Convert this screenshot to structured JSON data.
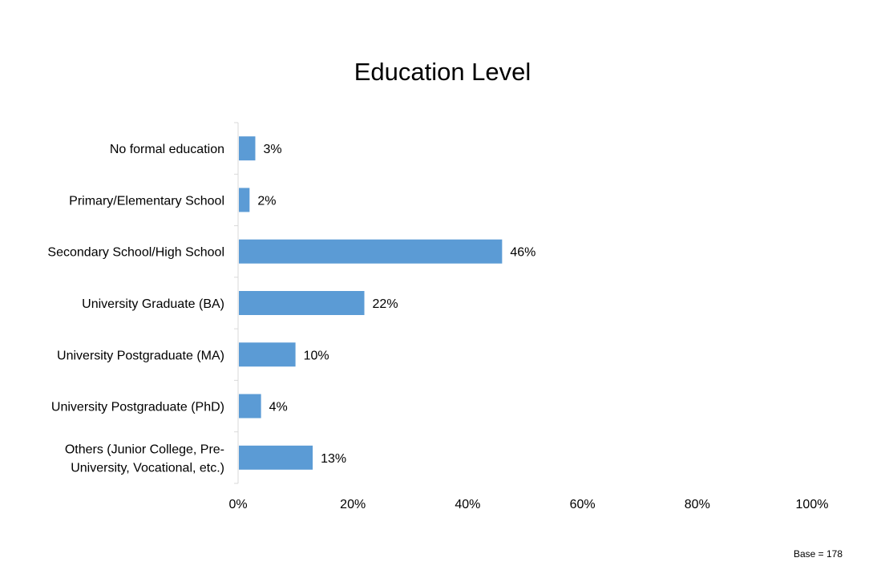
{
  "chart_data": {
    "type": "bar",
    "orientation": "horizontal",
    "title": "Education Level",
    "xlabel": "",
    "ylabel": "",
    "categories": [
      [
        "No formal education"
      ],
      [
        "Primary/Elementary School"
      ],
      [
        "Secondary School/High School"
      ],
      [
        "University Graduate (BA)"
      ],
      [
        "University Postgraduate (MA)"
      ],
      [
        "University Postgraduate (PhD)"
      ],
      [
        "Others (Junior College, Pre-",
        "University, Vocational, etc.)"
      ]
    ],
    "values": [
      3,
      2,
      46,
      22,
      10,
      4,
      13
    ],
    "value_labels": [
      "3%",
      "2%",
      "46%",
      "22%",
      "10%",
      "4%",
      "13%"
    ],
    "xlim": [
      0,
      100
    ],
    "x_ticks": [
      "0%",
      "20%",
      "40%",
      "60%",
      "80%",
      "100%"
    ],
    "grid": false,
    "legend": "none",
    "bar_color": "#5B9BD5",
    "axis_color": "#D9D9D9",
    "note": "Base = 178"
  }
}
